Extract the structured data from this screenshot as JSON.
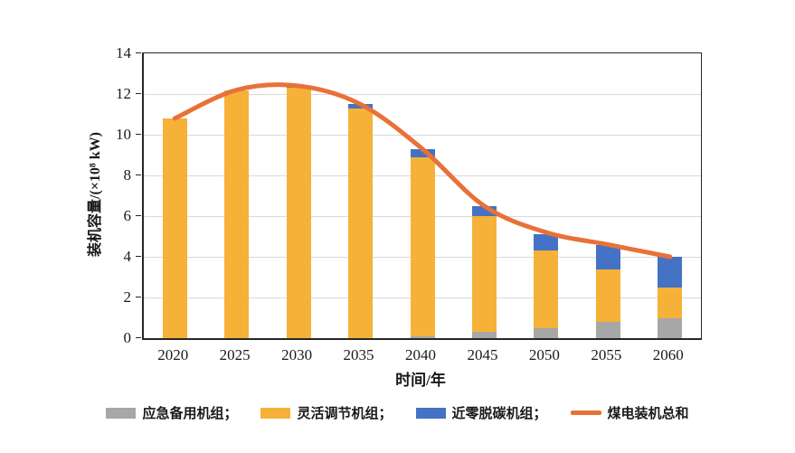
{
  "chart_data": {
    "type": "bar",
    "subtype": "stacked-bar-with-total-line",
    "categories": [
      "2020",
      "2025",
      "2030",
      "2035",
      "2040",
      "2045",
      "2050",
      "2055",
      "2060"
    ],
    "series": [
      {
        "name": "应急备用机组",
        "kind": "bar",
        "color": "#a7a7a7",
        "values": [
          0,
          0,
          0,
          0,
          0.1,
          0.3,
          0.5,
          0.8,
          1.0
        ]
      },
      {
        "name": "灵活调节机组",
        "kind": "bar",
        "color": "#f6b138",
        "values": [
          10.8,
          12.2,
          12.3,
          11.3,
          8.8,
          5.7,
          3.8,
          2.6,
          1.5
        ]
      },
      {
        "name": "近零脱碳机组",
        "kind": "bar",
        "color": "#4472c4",
        "values": [
          0,
          0,
          0.1,
          0.2,
          0.4,
          0.5,
          0.8,
          1.2,
          1.5
        ]
      },
      {
        "name": "煤电装机总和",
        "kind": "line",
        "color": "#e8713a",
        "values": [
          10.8,
          12.2,
          12.4,
          11.5,
          9.3,
          6.5,
          5.2,
          4.6,
          4.0
        ]
      }
    ],
    "xlabel": "时间/年",
    "ylabel": "装机容量/(×10⁸ kW)",
    "ylim": [
      0,
      14
    ],
    "ytick_step": 2,
    "yticks": [
      0,
      2,
      4,
      6,
      8,
      10,
      12,
      14
    ],
    "grid": true,
    "legend_position": "bottom",
    "colors": {
      "gridline": "#d9d9d9",
      "axis": "#262626",
      "text": "#1a1a1a",
      "background": "#ffffff"
    }
  },
  "legend": {
    "items": [
      {
        "label": "应急备用机组；",
        "swatch": "bar",
        "color": "#a7a7a7"
      },
      {
        "label": "灵活调节机组；",
        "swatch": "bar",
        "color": "#f6b138"
      },
      {
        "label": "近零脱碳机组；",
        "swatch": "bar",
        "color": "#4472c4"
      },
      {
        "label": "煤电装机总和",
        "swatch": "line",
        "color": "#e8713a"
      }
    ]
  }
}
